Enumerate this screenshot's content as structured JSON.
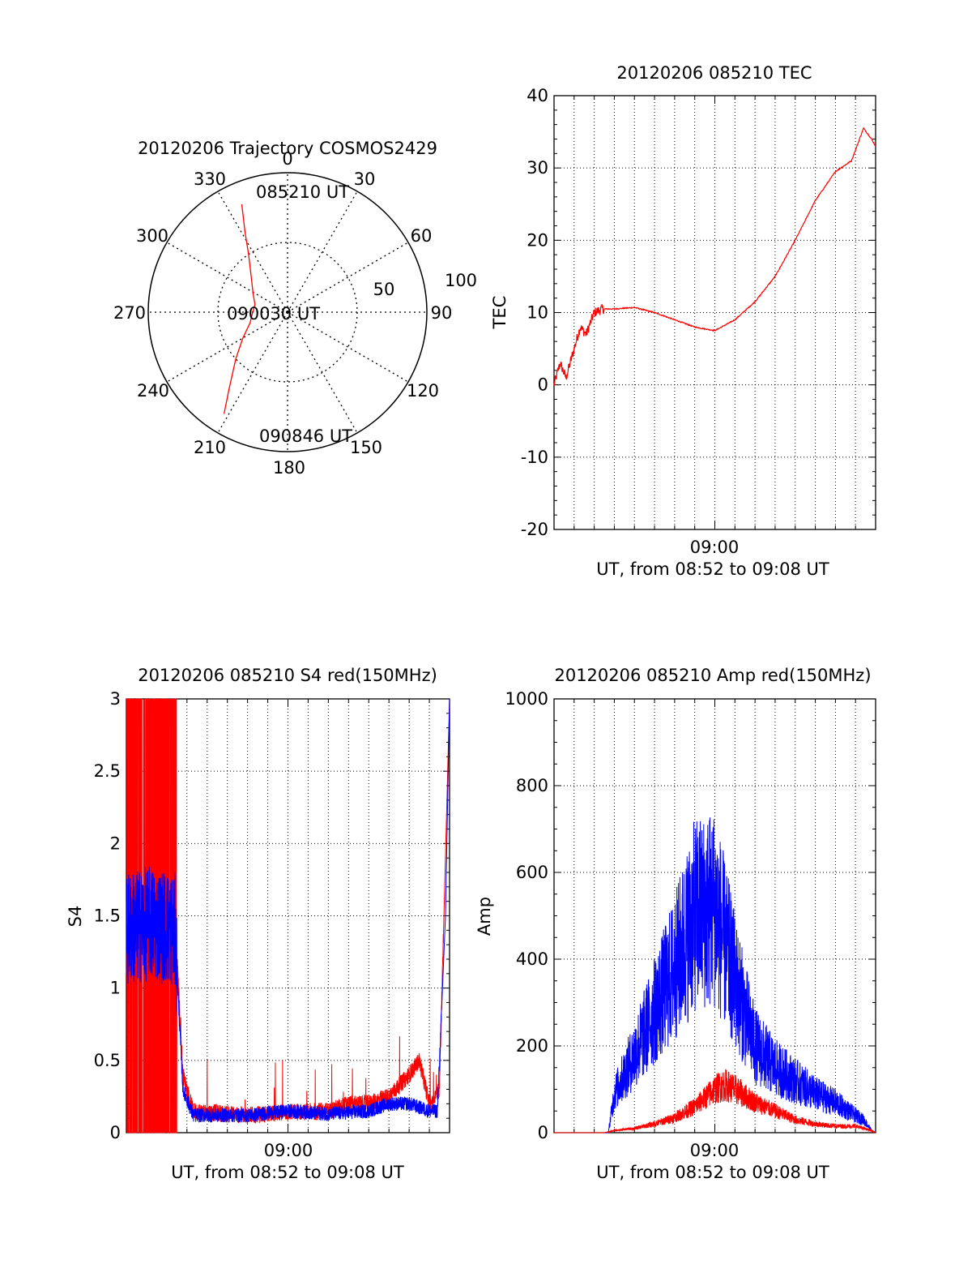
{
  "colors": {
    "red": "#ff0000",
    "blue": "#0000ff",
    "axis": "#000000",
    "grid": "#000000"
  },
  "chart_data": [
    {
      "type": "polar",
      "title": "20120206 Trajectory COSMOS2429",
      "angle_labels": [
        "0",
        "30",
        "60",
        "90",
        "120",
        "150",
        "180",
        "210",
        "240",
        "270",
        "300",
        "330"
      ],
      "radial_labels": [
        "50",
        "100"
      ],
      "rlim": [
        0,
        100
      ],
      "start_label": "085210 UT",
      "mid_label": "090030 UT",
      "end_label": "090846 UT",
      "series": [
        {
          "color": "red",
          "points": [
            [
              337,
              84
            ],
            [
              332,
              65
            ],
            [
              326,
              50
            ],
            [
              315,
              37
            ],
            [
              298,
              28
            ],
            [
              283,
              24
            ],
            [
              270,
              25
            ],
            [
              254,
              28
            ],
            [
              240,
              37
            ],
            [
              228,
              50
            ],
            [
              217,
              70
            ],
            [
              212,
              86
            ]
          ]
        }
      ]
    },
    {
      "type": "line",
      "title": "20120206 085210 TEC",
      "xlabel": "UT, from 08:52 to 09:08 UT",
      "ylabel": "TEC",
      "xtick_label": "09:00",
      "xlim": [
        "08:52",
        "09:08"
      ],
      "ylim": [
        -20,
        40
      ],
      "yticks": [
        "-20",
        "-10",
        "0",
        "10",
        "20",
        "30",
        "40"
      ],
      "grid": true,
      "series": [
        {
          "color": "red",
          "x": [
            0,
            0.3,
            0.6,
            1.0,
            1.3,
            1.6,
            2.0,
            2.4,
            3.0,
            4.0,
            5.0,
            6.0,
            7.0,
            8.0,
            9.0,
            10.0,
            11.0,
            12.0,
            13.0,
            14.0,
            14.8,
            15.4,
            15.8,
            16.0
          ],
          "y": [
            0,
            3,
            1,
            5,
            8,
            7,
            10,
            10.5,
            10.5,
            10.7,
            10,
            9,
            8,
            7.5,
            9,
            11.5,
            15,
            20,
            25.5,
            29.5,
            31,
            35.5,
            34,
            33
          ]
        }
      ]
    },
    {
      "type": "line",
      "title": "20120206 085210 S4 red(150MHz)",
      "xlabel": "UT, from 08:52 to 09:08 UT",
      "ylabel": "S4",
      "xtick_label": "09:00",
      "xlim": [
        "08:52",
        "09:08"
      ],
      "ylim": [
        0,
        3
      ],
      "yticks": [
        "0",
        "0.5",
        "1",
        "1.5",
        "2",
        "2.5",
        "3"
      ],
      "grid": true,
      "series": [
        {
          "color": "red",
          "x": [
            0,
            1.2,
            2.4,
            2.8,
            3.3,
            6.0,
            8.0,
            10.0,
            11.0,
            12.0,
            13.0,
            14.0,
            14.5,
            15.0,
            15.5,
            16.0
          ],
          "y": [
            1.5,
            1.5,
            1.5,
            0.4,
            0.15,
            0.12,
            0.14,
            0.15,
            0.2,
            0.2,
            0.25,
            0.4,
            0.5,
            0.2,
            0.3,
            3.0
          ]
        },
        {
          "color": "blue",
          "x": [
            0,
            1.2,
            2.4,
            2.8,
            3.3,
            6.0,
            8.0,
            10.0,
            12.0,
            13.0,
            14.0,
            15.0,
            15.4,
            15.8,
            16.0
          ],
          "y": [
            1.4,
            1.45,
            1.4,
            0.3,
            0.12,
            0.12,
            0.15,
            0.13,
            0.15,
            0.2,
            0.2,
            0.15,
            0.15,
            1.5,
            3.0
          ]
        }
      ]
    },
    {
      "type": "line",
      "title": "20120206 085210 Amp red(150MHz)",
      "xlabel": "UT, from 08:52 to 09:08 UT",
      "ylabel": "Amp",
      "xtick_label": "09:00",
      "xlim": [
        "08:52",
        "09:08"
      ],
      "ylim": [
        0,
        1000
      ],
      "yticks": [
        "0",
        "200",
        "400",
        "600",
        "800",
        "1000"
      ],
      "grid": true,
      "series": [
        {
          "color": "blue",
          "x": [
            0,
            2.0,
            2.7,
            3.0,
            4.0,
            5.0,
            6.0,
            7.0,
            8.0,
            9.0,
            10.0,
            11.0,
            12.0,
            13.0,
            14.0,
            15.0,
            15.4,
            15.8,
            16.0
          ],
          "y": [
            0,
            0,
            0,
            90,
            180,
            280,
            380,
            500,
            520,
            350,
            200,
            150,
            120,
            90,
            70,
            40,
            30,
            5,
            0
          ]
        },
        {
          "color": "red",
          "x": [
            0,
            2.5,
            3.0,
            4.0,
            5.0,
            6.0,
            7.0,
            8.0,
            8.5,
            9.0,
            10.0,
            11.0,
            12.0,
            13.0,
            14.0,
            15.0,
            15.8,
            16.0
          ],
          "y": [
            0,
            0,
            5,
            10,
            20,
            35,
            60,
            100,
            110,
            100,
            70,
            50,
            30,
            20,
            15,
            15,
            5,
            0
          ]
        }
      ]
    }
  ]
}
